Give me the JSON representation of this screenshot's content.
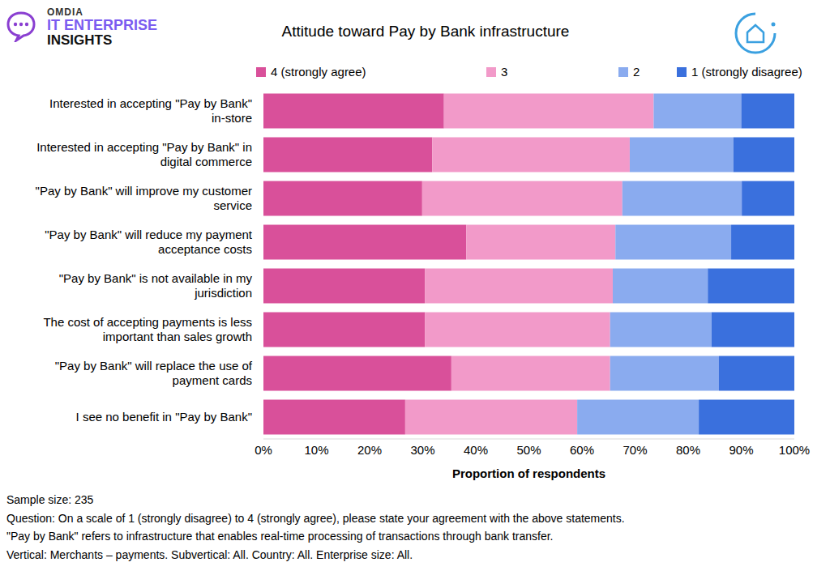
{
  "chart_data": {
    "type": "bar",
    "orientation": "horizontal",
    "stacked": true,
    "grid": false,
    "legend": "top",
    "title": "Attitude toward Pay by Bank infrastructure",
    "logo": [
      "OMDIA",
      "IT ENTERPRISE",
      "INSIGHTS"
    ],
    "x_label": "Proportion of respondents",
    "categories": [
      "Interested in accepting \"Pay by Bank\" in-store",
      "Interested in accepting \"Pay by Bank\" in digital commerce",
      "\"Pay by Bank\" will improve my customer service",
      "\"Pay by Bank\" will reduce my payment acceptance costs",
      "\"Pay by Bank\" is not available in my jurisdiction",
      "The cost of accepting payments is less important than sales growth",
      "\"Pay by Bank\" will replace the use of payment cards",
      "I see no benefit in \"Pay by Bank\""
    ],
    "series": [
      {
        "name": "4 (strongly agree)",
        "color": "#d9509a",
        "values": [
          34,
          31.8,
          29.9,
          38.2,
          30.4,
          30.4,
          35.4,
          26.7
        ]
      },
      {
        "name": "3",
        "color": "#f29ac9",
        "values": [
          39.5,
          37.2,
          37.7,
          28.1,
          35.4,
          34.9,
          29.9,
          32.4
        ]
      },
      {
        "name": "2",
        "color": "#8aabef",
        "values": [
          16.5,
          19.5,
          22.5,
          21.8,
          17.9,
          19.1,
          20.5,
          22.9
        ]
      },
      {
        "name": "1 (strongly disagree)",
        "color": "#3a70dd",
        "values": [
          10,
          11.5,
          9.9,
          11.9,
          16.3,
          15.6,
          14.2,
          18
        ]
      }
    ],
    "xlim": [
      0,
      100
    ],
    "xticks": [
      {
        "value": 0,
        "label": "0%"
      },
      {
        "value": 10,
        "label": "10%"
      },
      {
        "value": 20,
        "label": "20%"
      },
      {
        "value": 30,
        "label": "30%"
      },
      {
        "value": 40,
        "label": "40%"
      },
      {
        "value": 50,
        "label": "50%"
      },
      {
        "value": 60,
        "label": "60%"
      },
      {
        "value": 70,
        "label": "70%"
      },
      {
        "value": 80,
        "label": "80%"
      },
      {
        "value": 90,
        "label": "90%"
      },
      {
        "value": 100,
        "label": "100%"
      }
    ],
    "notes": [
      "Sample size: 235",
      "Question: On a scale of 1 (strongly disagree) to 4 (strongly agree), please state your agreement with the above statements.",
      "\"Pay by Bank\" refers to infrastructure that enables real-time processing of transactions through bank transfer.",
      "Vertical: Merchants – payments. Subvertical: All. Country: All. Enterprise size: All."
    ]
  }
}
